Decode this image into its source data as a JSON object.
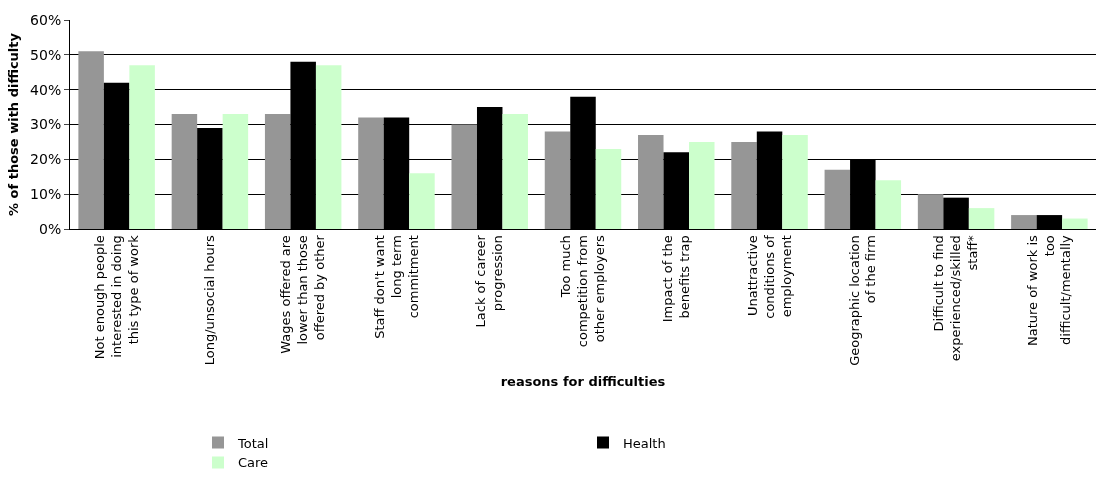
{
  "chart_data": {
    "type": "bar",
    "xlabel": "reasons for difficulties",
    "ylabel": "% of those with difficulty",
    "categories": [
      "Not enough people interested in doing this type of work",
      "Long/unsocial hours",
      "Wages offered are lower than those offered by other",
      "Staff don't want long term commitment",
      "Lack of career progression",
      "Too much competition from other employers",
      "Impact of the benefits trap",
      "Unattractive conditions of employment",
      "Geographic location of the firm",
      "Difficult to find experienced/skilled staff*",
      "Nature of work is too difficult/mentally"
    ],
    "series": [
      {
        "name": "Total",
        "color": "#969696",
        "values": [
          51,
          33,
          33,
          32,
          30,
          28,
          27,
          25,
          17,
          10,
          4
        ]
      },
      {
        "name": "Health",
        "color": "#000000",
        "values": [
          42,
          29,
          48,
          32,
          35,
          38,
          22,
          28,
          20,
          9,
          4
        ]
      },
      {
        "name": "Care",
        "color": "#ccffcc",
        "values": [
          47,
          33,
          47,
          16,
          33,
          23,
          25,
          27,
          14,
          6,
          3
        ]
      }
    ],
    "ylim": [
      0,
      60
    ],
    "yticks": [
      {
        "value": 0,
        "label": "0%"
      },
      {
        "value": 10,
        "label": "10%"
      },
      {
        "value": 20,
        "label": "20%"
      },
      {
        "value": 30,
        "label": "30%"
      },
      {
        "value": 40,
        "label": "40%"
      },
      {
        "value": 50,
        "label": "50%"
      },
      {
        "value": 60,
        "label": "60%"
      }
    ],
    "grid": "y",
    "legend": "bottom"
  }
}
